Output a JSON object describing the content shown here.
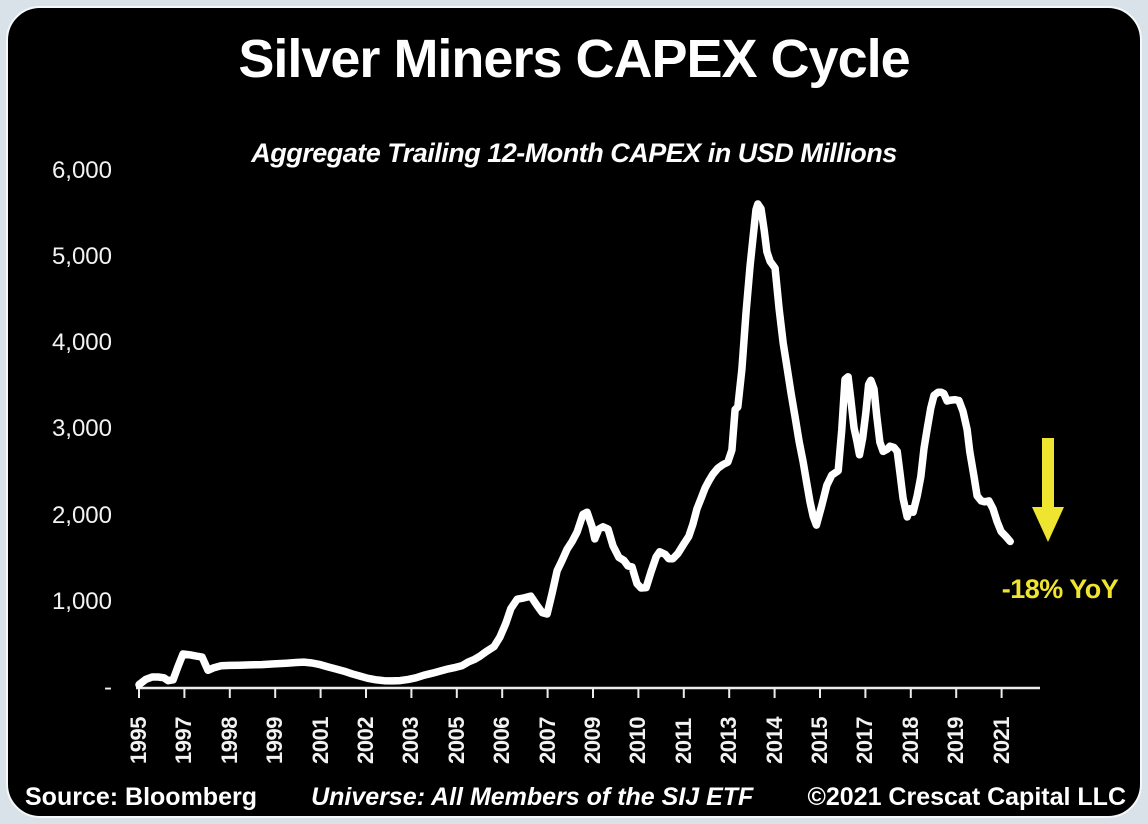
{
  "page": {
    "background_color": "#d9e2e8",
    "card_color": "#000000"
  },
  "chart_data": {
    "type": "line",
    "title": "Silver Miners CAPEX Cycle",
    "subtitle": "Aggregate Trailing 12-Month CAPEX in USD Millions",
    "xlabel": "",
    "ylabel": "",
    "x_unit": "axis-tick-index (see x_labels for the year at each integer tick)",
    "x_labels": [
      "1995",
      "1997",
      "1998",
      "1999",
      "2001",
      "2002",
      "2003",
      "2005",
      "2006",
      "2007",
      "2009",
      "2010",
      "2011",
      "2013",
      "2014",
      "2015",
      "2017",
      "2018",
      "2019",
      "2021"
    ],
    "y_ticks": [
      0,
      1000,
      2000,
      3000,
      4000,
      5000,
      6000
    ],
    "y_tick_labels": [
      "-",
      "1,000",
      "2,000",
      "3,000",
      "4,000",
      "5,000",
      "6,000"
    ],
    "ylim": [
      0,
      6000
    ],
    "grid": false,
    "legend": "none",
    "line_color": "#ffffff",
    "series": [
      {
        "name": "Aggregate trailing 12-month CAPEX of SIJ ETF members (USD millions)",
        "points": [
          [
            0.0,
            40
          ],
          [
            0.15,
            100
          ],
          [
            0.29,
            128
          ],
          [
            0.42,
            128
          ],
          [
            0.55,
            118
          ],
          [
            0.64,
            85
          ],
          [
            0.75,
            95
          ],
          [
            0.86,
            250
          ],
          [
            0.97,
            395
          ],
          [
            1.12,
            385
          ],
          [
            1.26,
            370
          ],
          [
            1.39,
            358
          ],
          [
            1.52,
            205
          ],
          [
            1.65,
            235
          ],
          [
            1.81,
            258
          ],
          [
            2.0,
            262
          ],
          [
            2.22,
            264
          ],
          [
            2.44,
            268
          ],
          [
            2.71,
            272
          ],
          [
            2.97,
            280
          ],
          [
            3.24,
            288
          ],
          [
            3.46,
            296
          ],
          [
            3.63,
            300
          ],
          [
            3.81,
            290
          ],
          [
            3.99,
            272
          ],
          [
            4.16,
            245
          ],
          [
            4.34,
            220
          ],
          [
            4.52,
            195
          ],
          [
            4.69,
            165
          ],
          [
            4.87,
            138
          ],
          [
            5.04,
            112
          ],
          [
            5.22,
            95
          ],
          [
            5.4,
            85
          ],
          [
            5.57,
            82
          ],
          [
            5.75,
            86
          ],
          [
            5.93,
            100
          ],
          [
            6.1,
            118
          ],
          [
            6.28,
            148
          ],
          [
            6.46,
            172
          ],
          [
            6.63,
            196
          ],
          [
            6.81,
            222
          ],
          [
            6.98,
            240
          ],
          [
            7.11,
            258
          ],
          [
            7.25,
            300
          ],
          [
            7.38,
            330
          ],
          [
            7.51,
            370
          ],
          [
            7.64,
            420
          ],
          [
            7.82,
            480
          ],
          [
            7.95,
            590
          ],
          [
            8.08,
            750
          ],
          [
            8.19,
            920
          ],
          [
            8.33,
            1030
          ],
          [
            8.48,
            1045
          ],
          [
            8.63,
            1065
          ],
          [
            8.77,
            955
          ],
          [
            8.88,
            875
          ],
          [
            8.99,
            858
          ],
          [
            9.1,
            1100
          ],
          [
            9.21,
            1360
          ],
          [
            9.32,
            1480
          ],
          [
            9.43,
            1610
          ],
          [
            9.54,
            1700
          ],
          [
            9.65,
            1810
          ],
          [
            9.78,
            2015
          ],
          [
            9.87,
            2040
          ],
          [
            9.98,
            1870
          ],
          [
            10.04,
            1730
          ],
          [
            10.13,
            1845
          ],
          [
            10.22,
            1870
          ],
          [
            10.33,
            1845
          ],
          [
            10.44,
            1650
          ],
          [
            10.57,
            1515
          ],
          [
            10.68,
            1480
          ],
          [
            10.77,
            1415
          ],
          [
            10.86,
            1405
          ],
          [
            10.97,
            1210
          ],
          [
            11.06,
            1160
          ],
          [
            11.17,
            1165
          ],
          [
            11.28,
            1350
          ],
          [
            11.39,
            1520
          ],
          [
            11.47,
            1580
          ],
          [
            11.59,
            1550
          ],
          [
            11.67,
            1500
          ],
          [
            11.76,
            1500
          ],
          [
            11.87,
            1560
          ],
          [
            12.0,
            1670
          ],
          [
            12.11,
            1760
          ],
          [
            12.2,
            1900
          ],
          [
            12.29,
            2080
          ],
          [
            12.38,
            2200
          ],
          [
            12.47,
            2320
          ],
          [
            12.56,
            2410
          ],
          [
            12.64,
            2480
          ],
          [
            12.75,
            2550
          ],
          [
            12.86,
            2590
          ],
          [
            12.97,
            2620
          ],
          [
            13.06,
            2760
          ],
          [
            13.13,
            3230
          ],
          [
            13.19,
            3260
          ],
          [
            13.28,
            3700
          ],
          [
            13.37,
            4350
          ],
          [
            13.46,
            4900
          ],
          [
            13.52,
            5200
          ],
          [
            13.59,
            5550
          ],
          [
            13.63,
            5615
          ],
          [
            13.7,
            5560
          ],
          [
            13.77,
            5310
          ],
          [
            13.83,
            5060
          ],
          [
            13.9,
            4950
          ],
          [
            14.01,
            4870
          ],
          [
            14.1,
            4400
          ],
          [
            14.19,
            4000
          ],
          [
            14.27,
            3730
          ],
          [
            14.36,
            3430
          ],
          [
            14.45,
            3150
          ],
          [
            14.54,
            2860
          ],
          [
            14.63,
            2620
          ],
          [
            14.7,
            2400
          ],
          [
            14.78,
            2160
          ],
          [
            14.85,
            1990
          ],
          [
            14.92,
            1890
          ],
          [
            15.04,
            2120
          ],
          [
            15.15,
            2350
          ],
          [
            15.26,
            2470
          ],
          [
            15.4,
            2520
          ],
          [
            15.48,
            3000
          ],
          [
            15.55,
            3580
          ],
          [
            15.62,
            3610
          ],
          [
            15.68,
            3340
          ],
          [
            15.75,
            3020
          ],
          [
            15.81,
            2870
          ],
          [
            15.87,
            2705
          ],
          [
            15.94,
            2900
          ],
          [
            16.01,
            3200
          ],
          [
            16.07,
            3520
          ],
          [
            16.12,
            3570
          ],
          [
            16.19,
            3470
          ],
          [
            16.25,
            3150
          ],
          [
            16.32,
            2850
          ],
          [
            16.39,
            2745
          ],
          [
            16.48,
            2770
          ],
          [
            16.54,
            2805
          ],
          [
            16.63,
            2790
          ],
          [
            16.7,
            2745
          ],
          [
            16.76,
            2500
          ],
          [
            16.83,
            2200
          ],
          [
            16.92,
            1985
          ],
          [
            16.98,
            2080
          ],
          [
            17.05,
            2040
          ],
          [
            17.14,
            2230
          ],
          [
            17.22,
            2450
          ],
          [
            17.29,
            2780
          ],
          [
            17.36,
            3000
          ],
          [
            17.44,
            3250
          ],
          [
            17.51,
            3395
          ],
          [
            17.6,
            3430
          ],
          [
            17.67,
            3430
          ],
          [
            17.73,
            3415
          ],
          [
            17.8,
            3330
          ],
          [
            17.89,
            3340
          ],
          [
            17.97,
            3345
          ],
          [
            18.06,
            3335
          ],
          [
            18.15,
            3210
          ],
          [
            18.24,
            3000
          ],
          [
            18.3,
            2740
          ],
          [
            18.39,
            2460
          ],
          [
            18.46,
            2230
          ],
          [
            18.55,
            2170
          ],
          [
            18.63,
            2160
          ],
          [
            18.72,
            2170
          ],
          [
            18.81,
            2080
          ],
          [
            18.9,
            1930
          ],
          [
            18.99,
            1815
          ],
          [
            19.1,
            1755
          ],
          [
            19.19,
            1700
          ]
        ]
      }
    ],
    "annotation": {
      "text": "-18% YoY",
      "color": "#efe42f",
      "arrow_direction": "down",
      "arrow_x_tick_index": 20.0,
      "arrow_value_top": 2900,
      "arrow_value_tip": 1700
    }
  },
  "footer": {
    "source": "Source: Bloomberg",
    "universe": "Universe: All Members of the SIJ ETF",
    "copyright": "©2021 Crescat Capital LLC"
  }
}
